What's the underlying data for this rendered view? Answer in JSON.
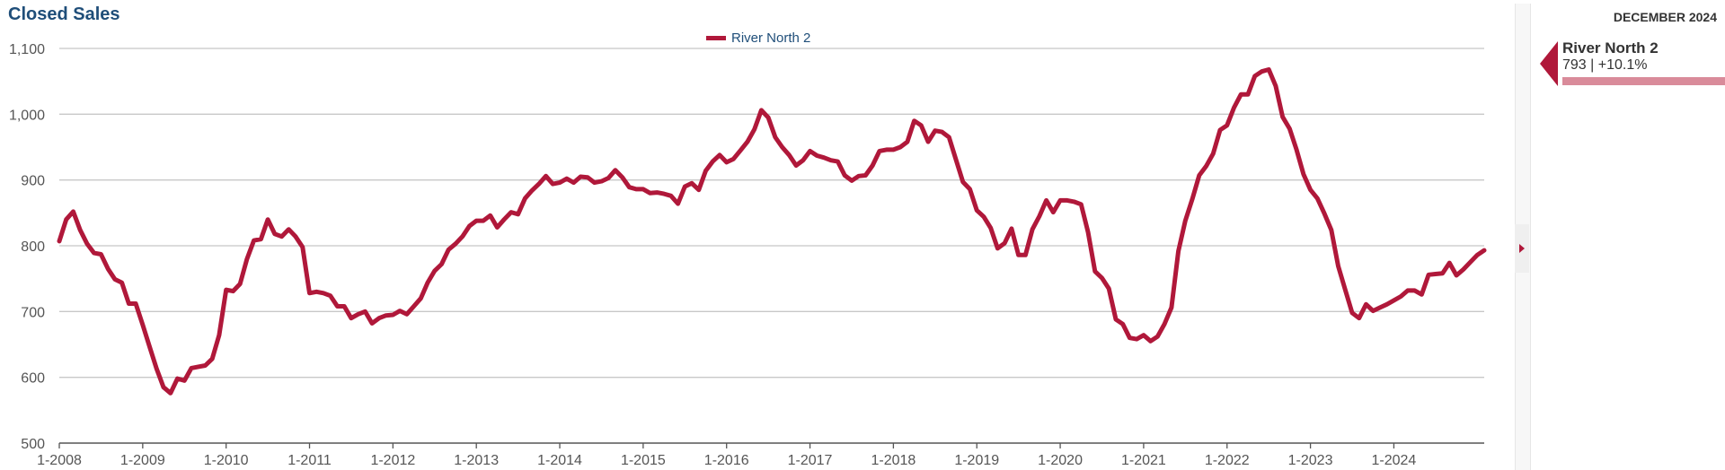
{
  "title": "Closed Sales",
  "legend": {
    "label": "River North 2",
    "color": "#b0183a"
  },
  "side_panel": {
    "date": "DECEMBER 2024",
    "item_name": "River North 2",
    "item_value": "793 | +10.1%",
    "bar_fraction": 1.0,
    "bar_color": "#d98b9a"
  },
  "chart_data": {
    "type": "line",
    "title": "Closed Sales",
    "xlabel": "",
    "ylabel": "",
    "ylim": [
      500,
      1100
    ],
    "yticks": [
      500,
      600,
      700,
      800,
      900,
      1000,
      1100
    ],
    "ytick_labels": [
      "500",
      "600",
      "700",
      "800",
      "900",
      "1,000",
      "1,100"
    ],
    "xtick_labels": [
      "1-2008",
      "1-2009",
      "1-2010",
      "1-2011",
      "1-2012",
      "1-2013",
      "1-2014",
      "1-2015",
      "1-2016",
      "1-2017",
      "1-2018",
      "1-2019",
      "1-2020",
      "1-2021",
      "1-2022",
      "1-2023",
      "1-2024"
    ],
    "x_start": "1-2008",
    "x_end": "12-2024",
    "grid": true,
    "legend_position": "top-center",
    "series": [
      {
        "name": "River North 2",
        "color": "#b0183a",
        "values": [
          807,
          840,
          852,
          824,
          803,
          789,
          787,
          765,
          749,
          744,
          712,
          712,
          680,
          646,
          613,
          585,
          576,
          598,
          595,
          614,
          616,
          618,
          628,
          664,
          733,
          731,
          742,
          780,
          808,
          810,
          840,
          818,
          814,
          825,
          814,
          798,
          728,
          730,
          728,
          724,
          708,
          708,
          690,
          696,
          700,
          682,
          690,
          694,
          695,
          701,
          696,
          708,
          720,
          744,
          762,
          772,
          794,
          803,
          814,
          830,
          838,
          838,
          846,
          828,
          840,
          851,
          848,
          872,
          884,
          894,
          906,
          894,
          896,
          902,
          896,
          905,
          904,
          896,
          898,
          903,
          915,
          904,
          889,
          886,
          886,
          880,
          881,
          879,
          876,
          864,
          890,
          895,
          885,
          914,
          928,
          938,
          927,
          932,
          945,
          958,
          977,
          1006,
          995,
          965,
          950,
          938,
          922,
          930,
          944,
          937,
          934,
          930,
          928,
          907,
          899,
          906,
          907,
          922,
          944,
          946,
          946,
          950,
          958,
          990,
          983,
          958,
          975,
          973,
          965,
          931,
          897,
          886,
          854,
          844,
          827,
          796,
          804,
          826,
          786,
          786,
          825,
          845,
          869,
          851,
          869,
          869,
          867,
          863,
          821,
          761,
          751,
          735,
          688,
          681,
          660,
          658,
          664,
          655,
          662,
          681,
          706,
          792,
          838,
          871,
          907,
          921,
          940,
          976,
          983,
          1010,
          1030,
          1030,
          1058,
          1065,
          1068,
          1043,
          996,
          978,
          946,
          909,
          885,
          872,
          849,
          824,
          769,
          733,
          698,
          690,
          711,
          701,
          706,
          711,
          717,
          723,
          732,
          732,
          726,
          756,
          757,
          758,
          774,
          755,
          764,
          775,
          786,
          793
        ]
      }
    ]
  }
}
